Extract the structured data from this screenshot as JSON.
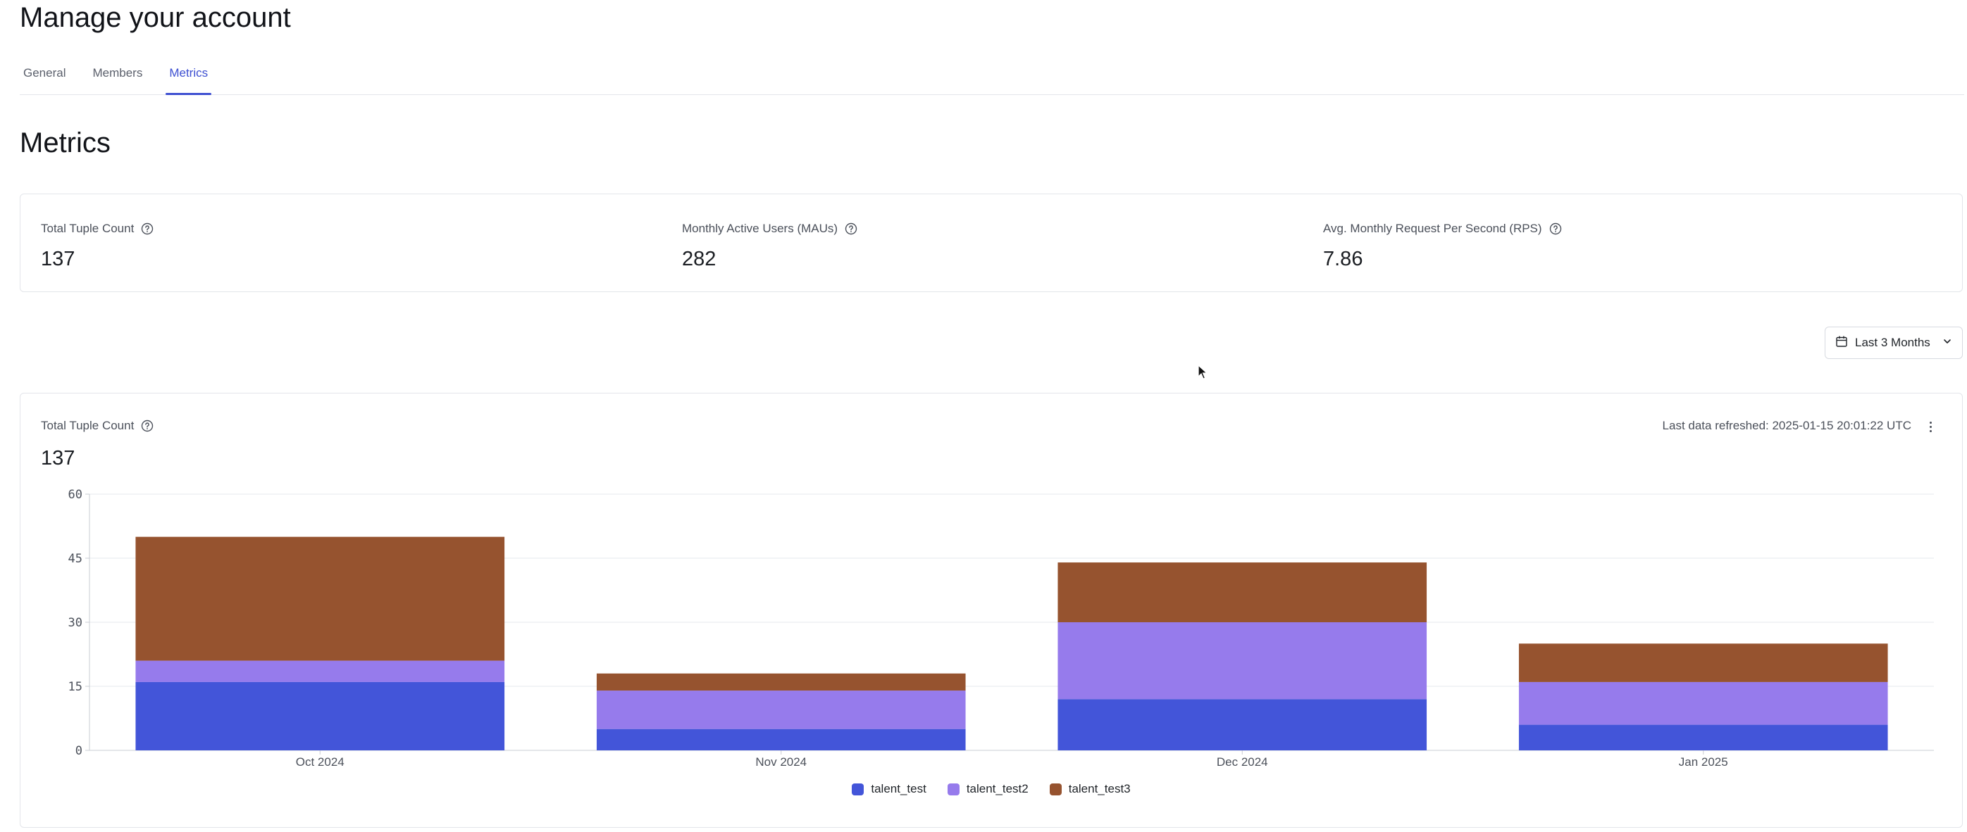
{
  "header": {
    "title": "Manage your account"
  },
  "tabs": [
    {
      "label": "General",
      "active": false
    },
    {
      "label": "Members",
      "active": false
    },
    {
      "label": "Metrics",
      "active": true
    }
  ],
  "section": {
    "title": "Metrics"
  },
  "stats": [
    {
      "label": "Total Tuple Count",
      "value": "137"
    },
    {
      "label": "Monthly Active Users (MAUs)",
      "value": "282"
    },
    {
      "label": "Avg. Monthly Request Per Second (RPS)",
      "value": "7.86"
    }
  ],
  "range_selector": {
    "label": "Last 3 Months",
    "icon": "calendar-icon"
  },
  "chart_card": {
    "label": "Total Tuple Count",
    "value": "137",
    "refresh_text": "Last data refreshed: 2025-01-15 20:01:22 UTC"
  },
  "colors": {
    "accent": "#3d4fd1",
    "talent_test": "#4355d9",
    "talent_test2": "#967bec",
    "talent_test3": "#96532f",
    "grid": "#e6e8ec"
  },
  "chart_data": {
    "type": "bar",
    "stacked": true,
    "categories": [
      "Oct 2024",
      "Nov 2024",
      "Dec 2024",
      "Jan 2025"
    ],
    "series": [
      {
        "name": "talent_test",
        "values": [
          16,
          5,
          12,
          6
        ],
        "color": "#4355d9"
      },
      {
        "name": "talent_test2",
        "values": [
          5,
          9,
          18,
          10
        ],
        "color": "#967bec"
      },
      {
        "name": "talent_test3",
        "values": [
          29,
          4,
          14,
          9
        ],
        "color": "#96532f"
      }
    ],
    "ylim": [
      0,
      60
    ],
    "yticks": [
      0,
      15,
      30,
      45,
      60
    ],
    "grid": true,
    "legend_position": "bottom-center"
  }
}
